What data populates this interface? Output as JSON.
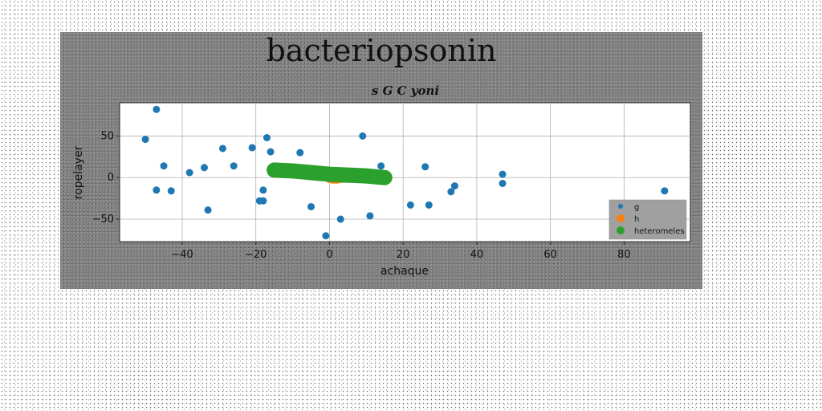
{
  "chart_data": {
    "type": "scatter",
    "title": "bacteriopsonin",
    "subtitle": "s G C yoni",
    "xlabel": "achaque",
    "ylabel": "ropelayer",
    "xlim": [
      -57,
      98
    ],
    "ylim": [
      -77,
      90
    ],
    "xticks": [
      -40,
      -20,
      0,
      20,
      40,
      60,
      80
    ],
    "yticks": [
      -50,
      0,
      50
    ],
    "grid": true,
    "legend_position": "lower-right",
    "series": [
      {
        "name": "g",
        "color": "#1f77b4",
        "marker": "dot",
        "points": [
          [
            -47,
            82
          ],
          [
            -50,
            46
          ],
          [
            -45,
            14
          ],
          [
            -47,
            -15
          ],
          [
            -43,
            -16
          ],
          [
            -38,
            6
          ],
          [
            -34,
            12
          ],
          [
            -33,
            -39
          ],
          [
            -29,
            35
          ],
          [
            -26,
            14
          ],
          [
            -21,
            36
          ],
          [
            -19,
            -28
          ],
          [
            -18,
            -15
          ],
          [
            -18,
            -28
          ],
          [
            -17,
            48
          ],
          [
            -16,
            31
          ],
          [
            -8,
            30
          ],
          [
            -5,
            -35
          ],
          [
            -1,
            -70
          ],
          [
            3,
            -50
          ],
          [
            9,
            50
          ],
          [
            11,
            -46
          ],
          [
            14,
            14
          ],
          [
            22,
            -33
          ],
          [
            26,
            13
          ],
          [
            27,
            -33
          ],
          [
            33,
            -17
          ],
          [
            34,
            -10
          ],
          [
            47,
            4
          ],
          [
            47,
            -7
          ],
          [
            91,
            -16
          ]
        ]
      },
      {
        "name": "h",
        "color": "#ff7f0e",
        "marker": "line",
        "points": [
          [
            0,
            0
          ],
          [
            1,
            -1
          ],
          [
            2,
            -1
          ],
          [
            3,
            0
          ],
          [
            4,
            0
          ]
        ]
      },
      {
        "name": "heteromeles",
        "color": "#2ca02c",
        "marker": "line",
        "points": [
          [
            -15,
            9
          ],
          [
            -10,
            8
          ],
          [
            -5,
            6
          ],
          [
            0,
            4
          ],
          [
            5,
            3
          ],
          [
            10,
            2
          ],
          [
            15,
            0
          ]
        ]
      }
    ]
  }
}
